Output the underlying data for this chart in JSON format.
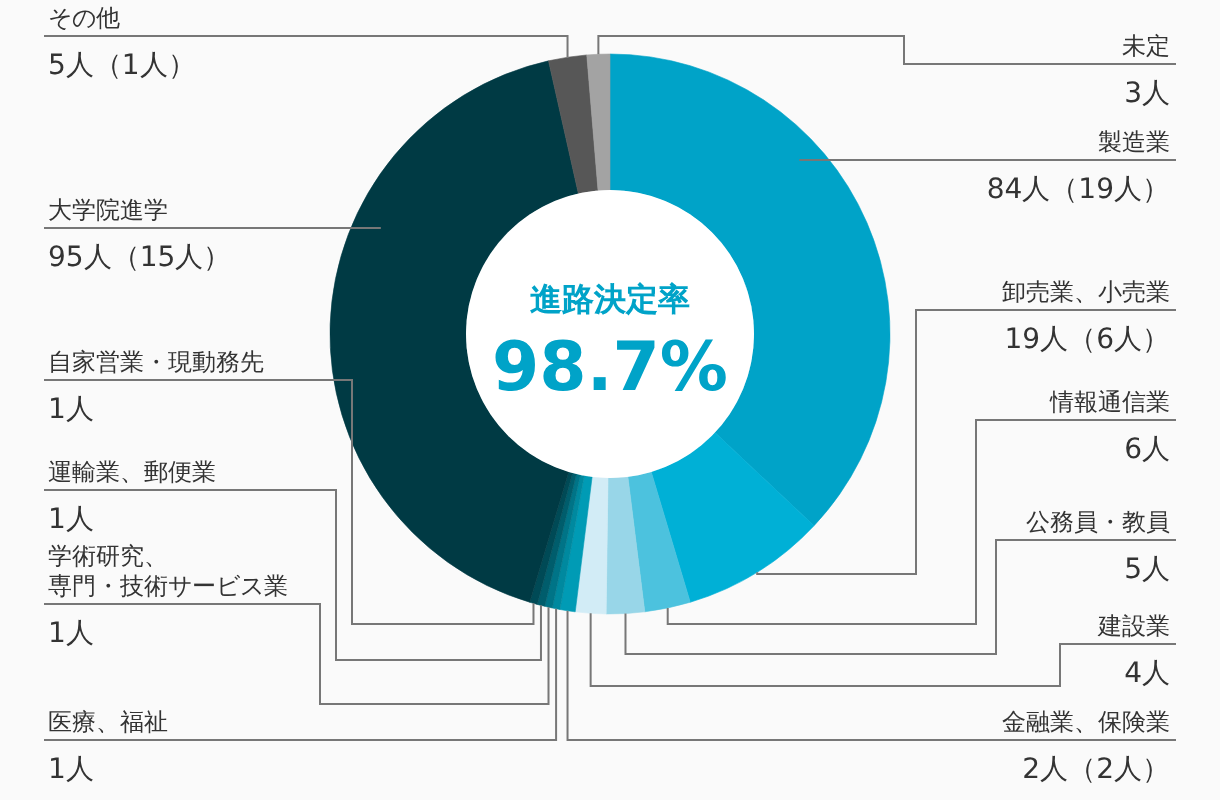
{
  "chart_data": {
    "type": "donut",
    "categories": [
      "製造業",
      "卸売業、小売業",
      "情報通信業",
      "公務員・教員",
      "建設業",
      "金融業、保険業",
      "医療、福祉",
      "学術研究、専門・技術サービス業",
      "運輸業、郵便業",
      "自家営業・現動務先",
      "大学院進学",
      "その他",
      "未定"
    ],
    "values": [
      84,
      19,
      6,
      5,
      4,
      2,
      1,
      1,
      1,
      1,
      95,
      5,
      3
    ],
    "colors": [
      "#00a3c8",
      "#00b0d6",
      "#4cc2de",
      "#98d6e8",
      "#d2ecf6",
      "#009bb5",
      "#00899f",
      "#007487",
      "#005d6c",
      "#004a56",
      "#003a44",
      "#575757",
      "#a3a3a3"
    ],
    "value_labels": [
      "84人（19人）",
      "19人（6人）",
      "6人",
      "5人",
      "4人",
      "2人（2人）",
      "1人",
      "1人",
      "1人",
      "1人",
      "95人（15人）",
      "5人（1人）",
      "3人"
    ],
    "annotations": [
      "進路決定率",
      "98.7%"
    ]
  }
}
